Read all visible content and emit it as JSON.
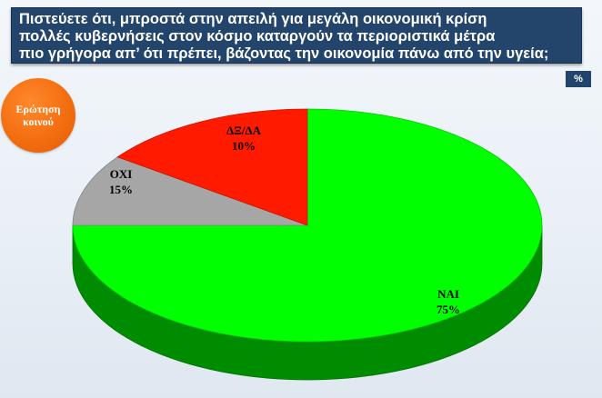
{
  "header": {
    "title_lines": [
      "Πιστεύετε ότι, μπροστά στην απειλή για μεγάλη οικονομική κρίση",
      "πολλές κυβερνήσεις στον κόσμο καταργούν τα περιοριστικά μέτρα",
      "πιο γρήγορα απ’ ότι πρέπει, βάζοντας την οικονομία πάνω από την υγεία;"
    ],
    "unit_label": "%"
  },
  "badge": {
    "line1": "Ερώτηση",
    "line2": "κοινού"
  },
  "colors": {
    "title_background": "#24456b",
    "badge": "#f26b0f",
    "nai": "#00ff00",
    "oxi": "#ff1a00",
    "dk_na": "#a6a6a6"
  },
  "chart_data": {
    "type": "pie",
    "style": "3d",
    "title": "Πιστεύετε ότι, μπροστά στην απειλή για μεγάλη οικονομική κρίση πολλές κυβερνήσεις στον κόσμο καταργούν τα περιοριστικά μέτρα πιο γρήγορα απ’ ότι πρέπει, βάζοντας την οικονομία πάνω από την υγεία;",
    "unit": "%",
    "slices": [
      {
        "label": "ΝΑΙ",
        "value": 75,
        "value_label": "75%",
        "color": "#00ff00"
      },
      {
        "label": "ΔΞ/ΔΑ",
        "value": 10,
        "value_label": "10%",
        "color": "#a6a6a6"
      },
      {
        "label": "ΟΧΙ",
        "value": 15,
        "value_label": "15%",
        "color": "#ff1a00"
      }
    ]
  }
}
